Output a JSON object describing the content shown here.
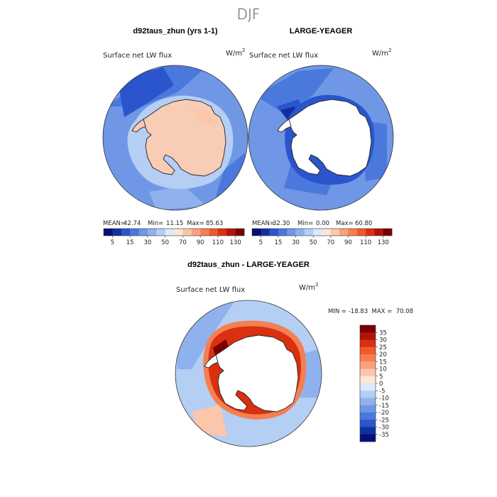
{
  "page": {
    "season": "DJF"
  },
  "chart_data": [
    {
      "type": "heatmap",
      "projection": "south-polar-stereographic",
      "title": "d92taus_zhun (yrs 1-1)",
      "subtitle": "Surface net LW flux",
      "units_base": "W/m",
      "units_exp": "2",
      "stats": {
        "mean": "42.74",
        "min": "11.15",
        "max": "85.63"
      },
      "stats_text": {
        "mean_label": "MEAN=",
        "min_label": "Min=",
        "max_label": "Max="
      },
      "colorbar_ticks": [
        "5",
        "15",
        "30",
        "50",
        "70",
        "90",
        "110",
        "130"
      ],
      "colorbar_levels": [
        0,
        5,
        10,
        15,
        20,
        30,
        40,
        50,
        60,
        70,
        80,
        90,
        100,
        110,
        120,
        130
      ],
      "ocean_value": 18,
      "land_value": 65,
      "land_fill": "#f9ccb5"
    },
    {
      "type": "heatmap",
      "projection": "south-polar-stereographic",
      "title": "LARGE-YEAGER",
      "subtitle": "Surface net LW flux",
      "units_base": "W/m",
      "units_exp": "2",
      "stats": {
        "mean": "32.30",
        "min": "0.00",
        "max": "60.80"
      },
      "stats_text": {
        "mean_label": "MEAN=",
        "min_label": "Min=",
        "max_label": "Max="
      },
      "colorbar_ticks": [
        "5",
        "15",
        "30",
        "50",
        "70",
        "90",
        "110",
        "130"
      ],
      "colorbar_levels": [
        0,
        5,
        10,
        15,
        20,
        30,
        40,
        50,
        60,
        70,
        80,
        90,
        100,
        110,
        120,
        130
      ],
      "ocean_value": 16,
      "land_value": null,
      "land_fill": "#ffffff"
    },
    {
      "type": "heatmap",
      "projection": "south-polar-stereographic",
      "title": "d92taus_zhun - LARGE-YEAGER",
      "subtitle": "Surface net LW flux",
      "units_base": "W/m",
      "units_exp": "2",
      "stats_line": "MIN = -18.83  MAX =  70.08",
      "colorbar_ticks": [
        "35",
        "30",
        "25",
        "20",
        "15",
        "10",
        "5",
        "0",
        "-5",
        "-10",
        "-15",
        "-20",
        "-25",
        "-30",
        "-35"
      ],
      "colorbar_colors": [
        "#7a0000",
        "#b3120c",
        "#d9300f",
        "#ef5a2b",
        "#f67f52",
        "#f9a27c",
        "#fbc6aa",
        "#fde6d6",
        "#dbe9fb",
        "#b4cef4",
        "#8fb2ee",
        "#6f97e6",
        "#4b78dc",
        "#2a55cc",
        "#10309f",
        "#050f78"
      ],
      "ocean_value": -6,
      "coastal_ring_value": 30,
      "land_value": null,
      "land_fill": "#ffffff"
    }
  ],
  "colors": {
    "c0": "#050f78",
    "c1": "#10309f",
    "c2": "#2a55cc",
    "c3": "#4b78dc",
    "c4": "#6f97e6",
    "c5": "#8fb2ee",
    "c6": "#b4cef4",
    "c7": "#dbe9fb",
    "c8": "#fde6d6",
    "c9": "#fbc6aa",
    "c10": "#f9a27c",
    "c11": "#f67f52",
    "c12": "#ef5a2b",
    "c13": "#d9300f",
    "c14": "#b3120c",
    "c15": "#7a0000"
  }
}
